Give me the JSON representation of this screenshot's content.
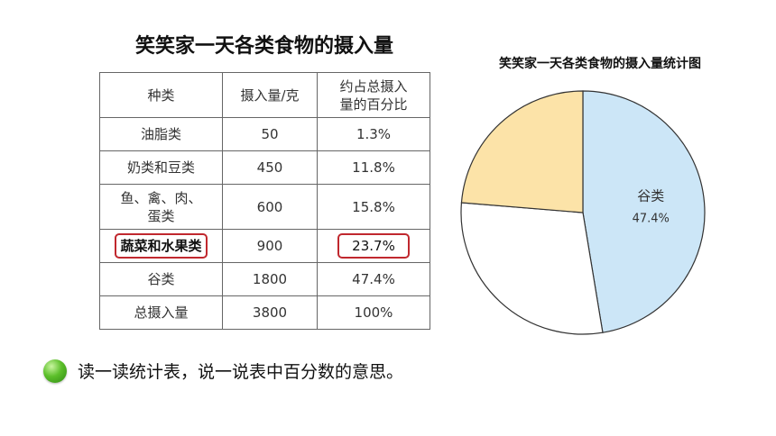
{
  "table": {
    "title": "笑笑家一天各类食物的摄入量",
    "headers": [
      "种类",
      "摄入量/克",
      "约占总摄入量的百分比"
    ],
    "rows": [
      {
        "category": "油脂类",
        "amount": "50",
        "percent": "1.3%"
      },
      {
        "category": "奶类和豆类",
        "amount": "450",
        "percent": "11.8%"
      },
      {
        "category": "鱼、禽、肉、蛋类",
        "amount": "600",
        "percent": "15.8%"
      },
      {
        "category": "蔬菜和水果类",
        "amount": "900",
        "percent": "23.7%"
      },
      {
        "category": "谷类",
        "amount": "1800",
        "percent": "47.4%"
      },
      {
        "category": "总摄入量",
        "amount": "3800",
        "percent": "100%"
      }
    ]
  },
  "chart_data": {
    "type": "pie",
    "title": "笑笑家一天各类食物的摄入量统计图",
    "slices": [
      {
        "label": "谷类",
        "value": 47.4,
        "value_label": "47.4%",
        "color": "#cce6f7"
      },
      {
        "label": "",
        "value": 28.9,
        "color": "#ffffff"
      },
      {
        "label": "",
        "value": 23.7,
        "color": "#fce3a8"
      }
    ],
    "start_angle_deg": 0,
    "direction": "clockwise"
  },
  "footer": {
    "text": "读一读统计表，说一说表中百分数的意思。"
  }
}
